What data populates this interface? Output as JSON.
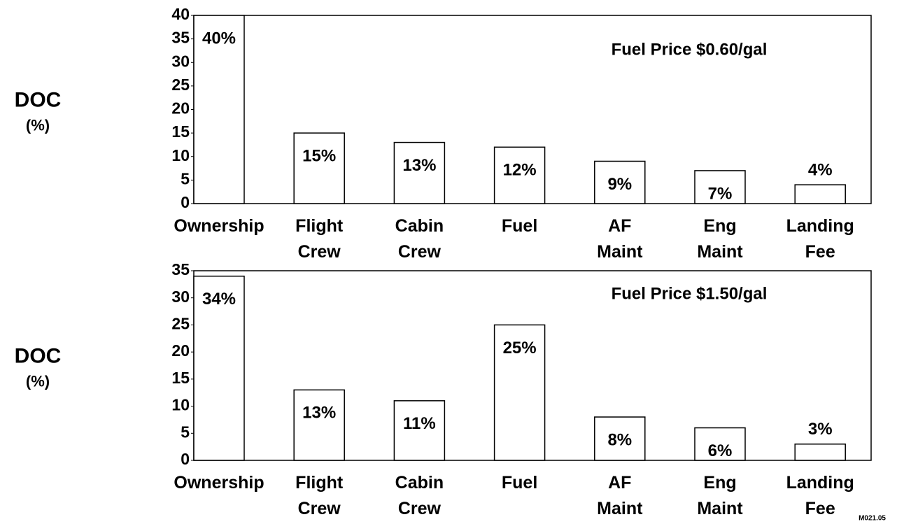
{
  "chart_data": [
    {
      "type": "bar",
      "y_label": "DOC (%)",
      "annotation": "Fuel Price $0.60/gal",
      "categories": [
        "Ownership",
        "Flight Crew",
        "Cabin Crew",
        "Fuel",
        "AF Maint",
        "Eng Maint",
        "Landing Fee"
      ],
      "values": [
        40,
        15,
        13,
        12,
        9,
        7,
        4
      ],
      "value_labels": [
        "40%",
        "15%",
        "13%",
        "12%",
        "9%",
        "7%",
        "4%"
      ],
      "color": "#ffffff",
      "ylim": [
        0,
        40
      ],
      "yticks": [
        0,
        5,
        10,
        15,
        20,
        25,
        30,
        35,
        40
      ]
    },
    {
      "type": "bar",
      "y_label": "DOC (%)",
      "annotation": "Fuel Price $1.50/gal",
      "categories": [
        "Ownership",
        "Flight Crew",
        "Cabin Crew",
        "Fuel",
        "AF Maint",
        "Eng Maint",
        "Landing Fee"
      ],
      "values": [
        34,
        13,
        11,
        25,
        8,
        6,
        3
      ],
      "value_labels": [
        "34%",
        "13%",
        "11%",
        "25%",
        "8%",
        "6%",
        "3%"
      ],
      "color": "#ffffff",
      "ylim": [
        0,
        35
      ],
      "yticks": [
        0,
        5,
        10,
        15,
        20,
        25,
        30,
        35
      ]
    }
  ],
  "footer": "M021.05"
}
